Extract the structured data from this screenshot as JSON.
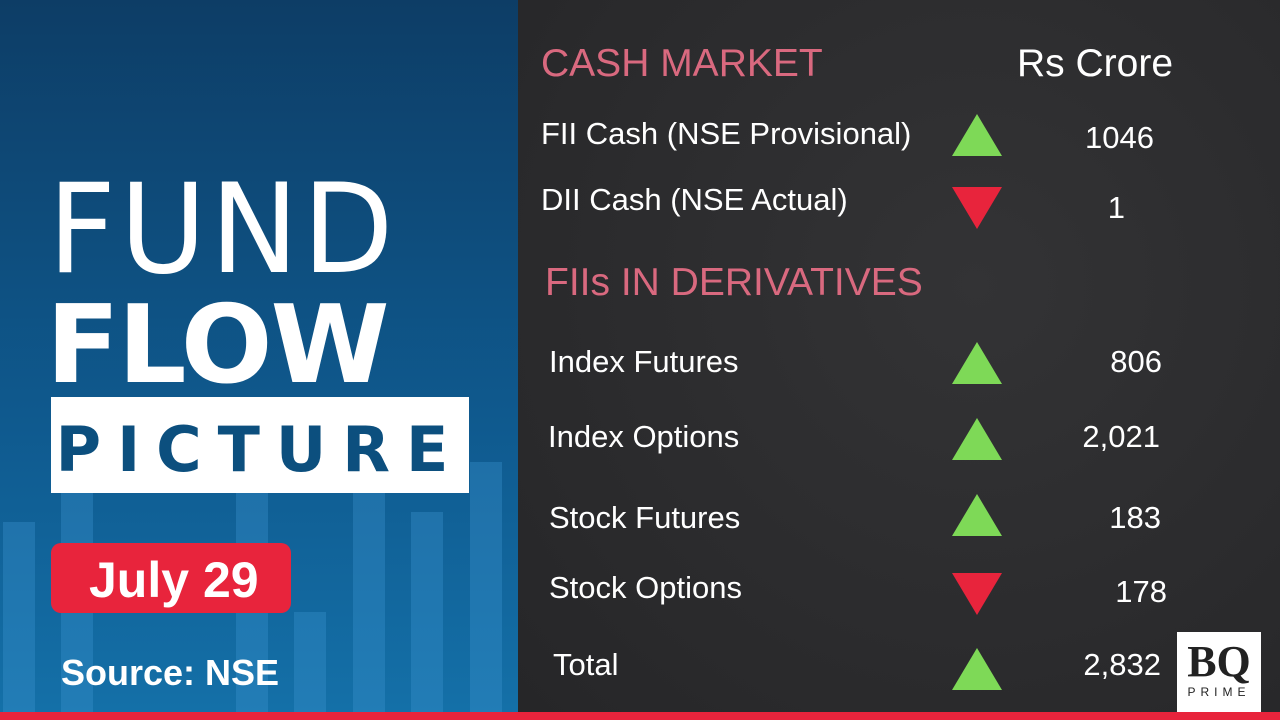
{
  "title": {
    "line1": "FUND",
    "line2": "FLOW",
    "line3": "PICTURE"
  },
  "date": "July 29",
  "source": "Source: NSE",
  "cash_market": {
    "heading": "CASH MARKET",
    "unit": "Rs Crore",
    "rows": [
      {
        "label": "FII Cash (NSE Provisional)",
        "value": "1046",
        "direction": "up"
      },
      {
        "label": "DII Cash (NSE Actual)",
        "value": "1",
        "direction": "down"
      }
    ]
  },
  "derivatives": {
    "heading": "FIIs IN DERIVATIVES",
    "rows": [
      {
        "label": "Index Futures",
        "value": "806",
        "direction": "up"
      },
      {
        "label": "Index Options",
        "value": "2,021",
        "direction": "up"
      },
      {
        "label": "Stock Futures",
        "value": "183",
        "direction": "up"
      },
      {
        "label": "Stock Options",
        "value": "178",
        "direction": "down"
      },
      {
        "label": "Total",
        "value": "2,832",
        "direction": "up"
      }
    ]
  },
  "logo": {
    "mark": "BQ",
    "sub": "PRIME"
  },
  "colors": {
    "up": "#7ed957",
    "down": "#e8243c",
    "heading": "#d9697f",
    "accent": "#e8243c"
  }
}
